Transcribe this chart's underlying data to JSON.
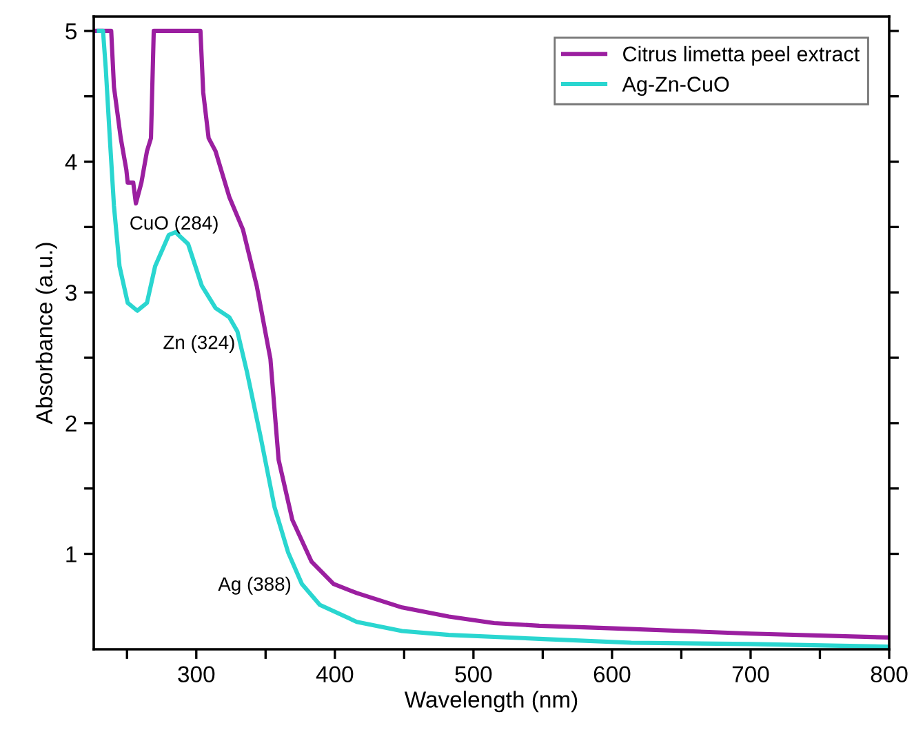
{
  "chart_data": {
    "type": "line",
    "xlabel": "Wavelength (nm)",
    "ylabel": "Absorbance (a.u.)",
    "xlim": [
      226,
      800
    ],
    "ylim": [
      0.27,
      5.11
    ],
    "xticks": [
      {
        "value": 250,
        "label": null
      },
      300,
      {
        "value": 350,
        "label": null
      },
      400,
      {
        "value": 450,
        "label": null
      },
      500,
      {
        "value": 550,
        "label": null
      },
      600,
      {
        "value": 650,
        "label": null
      },
      700,
      {
        "value": 750,
        "label": null
      },
      800
    ],
    "yticks": [
      1,
      {
        "value": 1.5,
        "label": null
      },
      2,
      {
        "value": 2.5,
        "label": null
      },
      3,
      {
        "value": 3.5,
        "label": null
      },
      4,
      {
        "value": 4.5,
        "label": null
      },
      5
    ],
    "grid": false,
    "legend": "top right",
    "marker": "none",
    "line_style": "solid",
    "series": [
      {
        "name": "Citrus limetta peel extract",
        "color": "#9b1fa0",
        "x": [
          228,
          238.6,
          240.6,
          245.5,
          249.5,
          250.5,
          254.5,
          256.4,
          260.4,
          264.4,
          267.3,
          269.3,
          303,
          305,
          308.9,
          313.9,
          323.8,
          333.7,
          343.6,
          353.5,
          359.4,
          369.3,
          383.2,
          399,
          415.8,
          448.5,
          482.2,
          514.9,
          547.5,
          601,
          700,
          800
        ],
        "values": [
          5.0,
          5.0,
          4.57,
          4.18,
          3.94,
          3.84,
          3.84,
          3.68,
          3.84,
          4.08,
          4.18,
          5.0,
          5.0,
          4.53,
          4.18,
          4.08,
          3.73,
          3.48,
          3.05,
          2.49,
          1.72,
          1.26,
          0.94,
          0.77,
          0.7,
          0.59,
          0.52,
          0.47,
          0.45,
          0.43,
          0.39,
          0.36
        ]
      },
      {
        "name": "Ag-Zn-CuO",
        "color": "#2ad6d0",
        "x": [
          229.7,
          232.7,
          234.7,
          237.6,
          240.6,
          244.6,
          250.5,
          257.4,
          264.4,
          270.3,
          280.2,
          285.1,
          294.1,
          304,
          313.9,
          323.8,
          329.7,
          336.6,
          346.5,
          356.4,
          366.3,
          376.2,
          389.1,
          415.8,
          448.5,
          482.2,
          547.5,
          613.9,
          700,
          800
        ],
        "values": [
          5.0,
          5.0,
          4.71,
          4.18,
          3.66,
          3.2,
          2.92,
          2.86,
          2.92,
          3.2,
          3.44,
          3.46,
          3.37,
          3.05,
          2.88,
          2.81,
          2.7,
          2.39,
          1.89,
          1.36,
          1.01,
          0.77,
          0.61,
          0.48,
          0.41,
          0.38,
          0.35,
          0.32,
          0.31,
          0.29
        ]
      }
    ],
    "annotations": [
      {
        "text": "CuO (284)",
        "x": 284,
        "y": 3.46
      },
      {
        "text": "Zn (324)",
        "x": 324,
        "y": 2.81
      },
      {
        "text": "Ag (388)",
        "x": 388,
        "y": 0.61
      }
    ]
  }
}
